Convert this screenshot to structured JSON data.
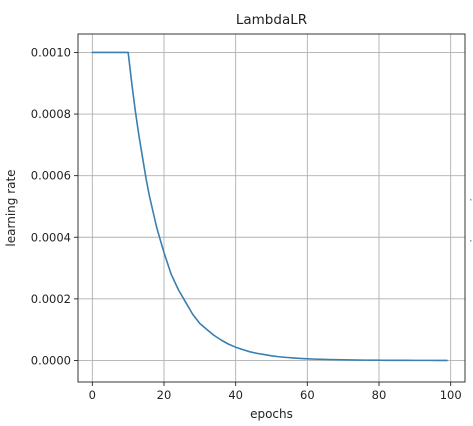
{
  "chart_data": {
    "type": "line",
    "title": "LambdaLR",
    "xlabel": "epochs",
    "ylabel": "learning rate",
    "xlim": [
      -4,
      104
    ],
    "ylim": [
      -7e-05,
      0.00106
    ],
    "x_ticks": [
      0,
      20,
      40,
      60,
      80,
      100
    ],
    "x_tick_labels": [
      "0",
      "20",
      "40",
      "60",
      "80",
      "100"
    ],
    "y_ticks": [
      0.0,
      0.0002,
      0.0004,
      0.0006,
      0.0008,
      0.001
    ],
    "y_tick_labels": [
      "0.0000",
      "0.0002",
      "0.0004",
      "0.0006",
      "0.0008",
      "0.0010"
    ],
    "grid": true,
    "legend": "none",
    "series_color": "#3a7fb0",
    "series": [
      {
        "x": [
          0,
          1,
          2,
          3,
          4,
          5,
          6,
          7,
          8,
          9,
          10,
          11,
          12,
          13,
          14,
          15,
          16,
          17,
          18,
          19,
          20,
          22,
          24,
          26,
          28,
          30,
          32,
          34,
          36,
          38,
          40,
          42,
          44,
          46,
          48,
          50,
          52,
          54,
          56,
          58,
          60,
          62,
          64,
          66,
          68,
          70,
          72,
          74,
          76,
          78,
          80,
          82,
          84,
          86,
          88,
          90,
          92,
          94,
          96,
          98,
          99
        ],
        "values": [
          0.001,
          0.001,
          0.001,
          0.001,
          0.001,
          0.001,
          0.001,
          0.001,
          0.001,
          0.001,
          0.001,
          0.0009,
          0.00081,
          0.00073,
          0.00066,
          0.00059,
          0.00053,
          0.00048,
          0.00043,
          0.00039,
          0.00035,
          0.00028,
          0.00023,
          0.00019,
          0.00015,
          0.00012,
          0.0001,
          8.1e-05,
          6.6e-05,
          5.3e-05,
          4.3e-05,
          3.5e-05,
          2.8e-05,
          2.3e-05,
          1.9e-05,
          1.5e-05,
          1.2e-05,
          1e-05,
          8.1e-06,
          6.6e-06,
          5.3e-06,
          4.3e-06,
          3.5e-06,
          2.8e-06,
          2.3e-06,
          1.9e-06,
          1.5e-06,
          1.2e-06,
          1e-06,
          8e-07,
          7e-07,
          5e-07,
          4e-07,
          4e-07,
          3e-07,
          2e-07,
          2e-07,
          2e-07,
          1e-07,
          1e-07,
          1e-07
        ]
      }
    ]
  }
}
